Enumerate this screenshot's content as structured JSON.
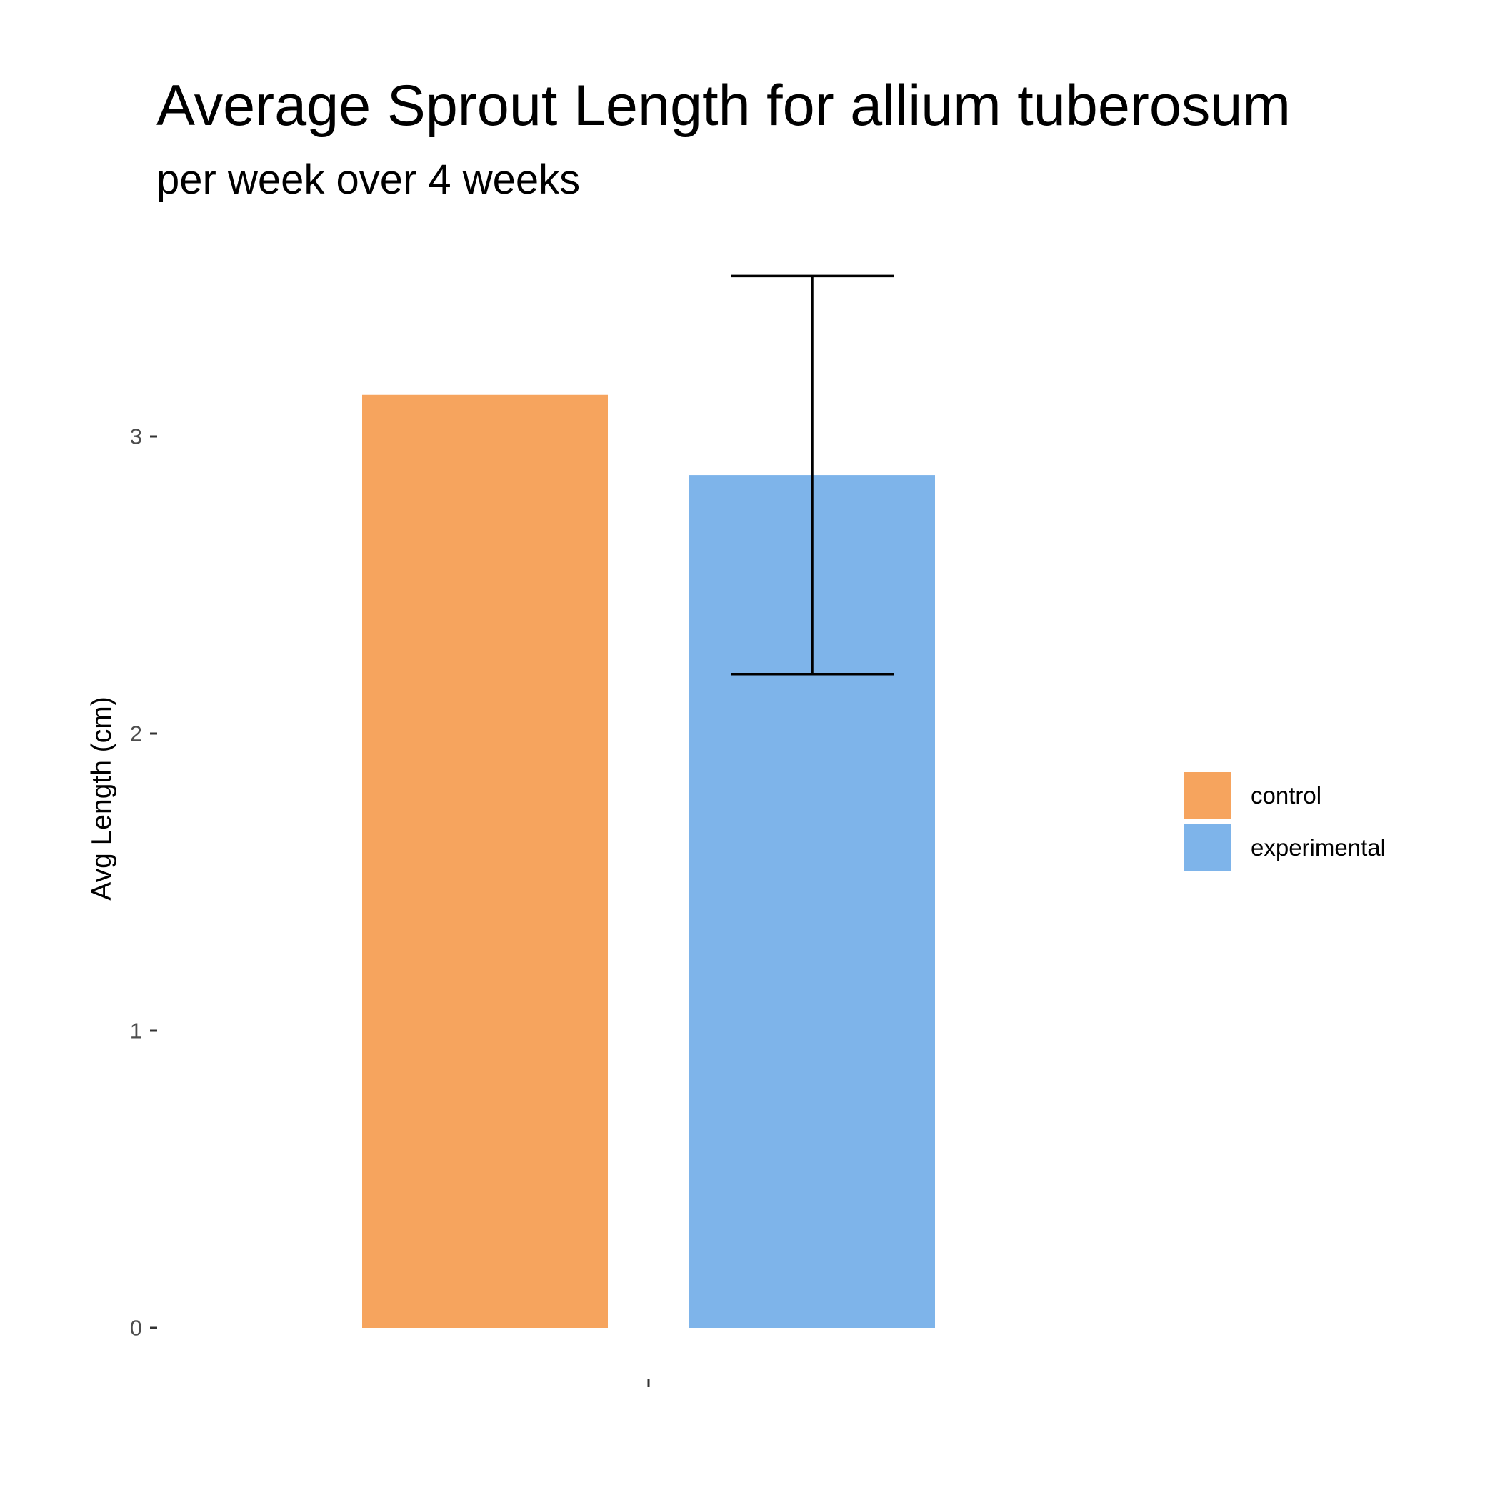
{
  "chart_data": {
    "type": "bar",
    "title": "Average Sprout Length for allium tuberosum",
    "subtitle": "per week over 4 weeks",
    "xlabel": "",
    "ylabel": "Avg Length (cm)",
    "categories": [
      ""
    ],
    "series": [
      {
        "name": "control",
        "values": [
          3.14
        ],
        "color": "#F6A45E"
      },
      {
        "name": "experimental",
        "values": [
          2.87
        ],
        "color": "#7EB4EA",
        "error": [
          2.2,
          3.54
        ]
      }
    ],
    "yticks": [
      0,
      1,
      2,
      3
    ],
    "ylim": [
      0,
      3.54
    ],
    "grid": false,
    "legend_position": "right"
  }
}
